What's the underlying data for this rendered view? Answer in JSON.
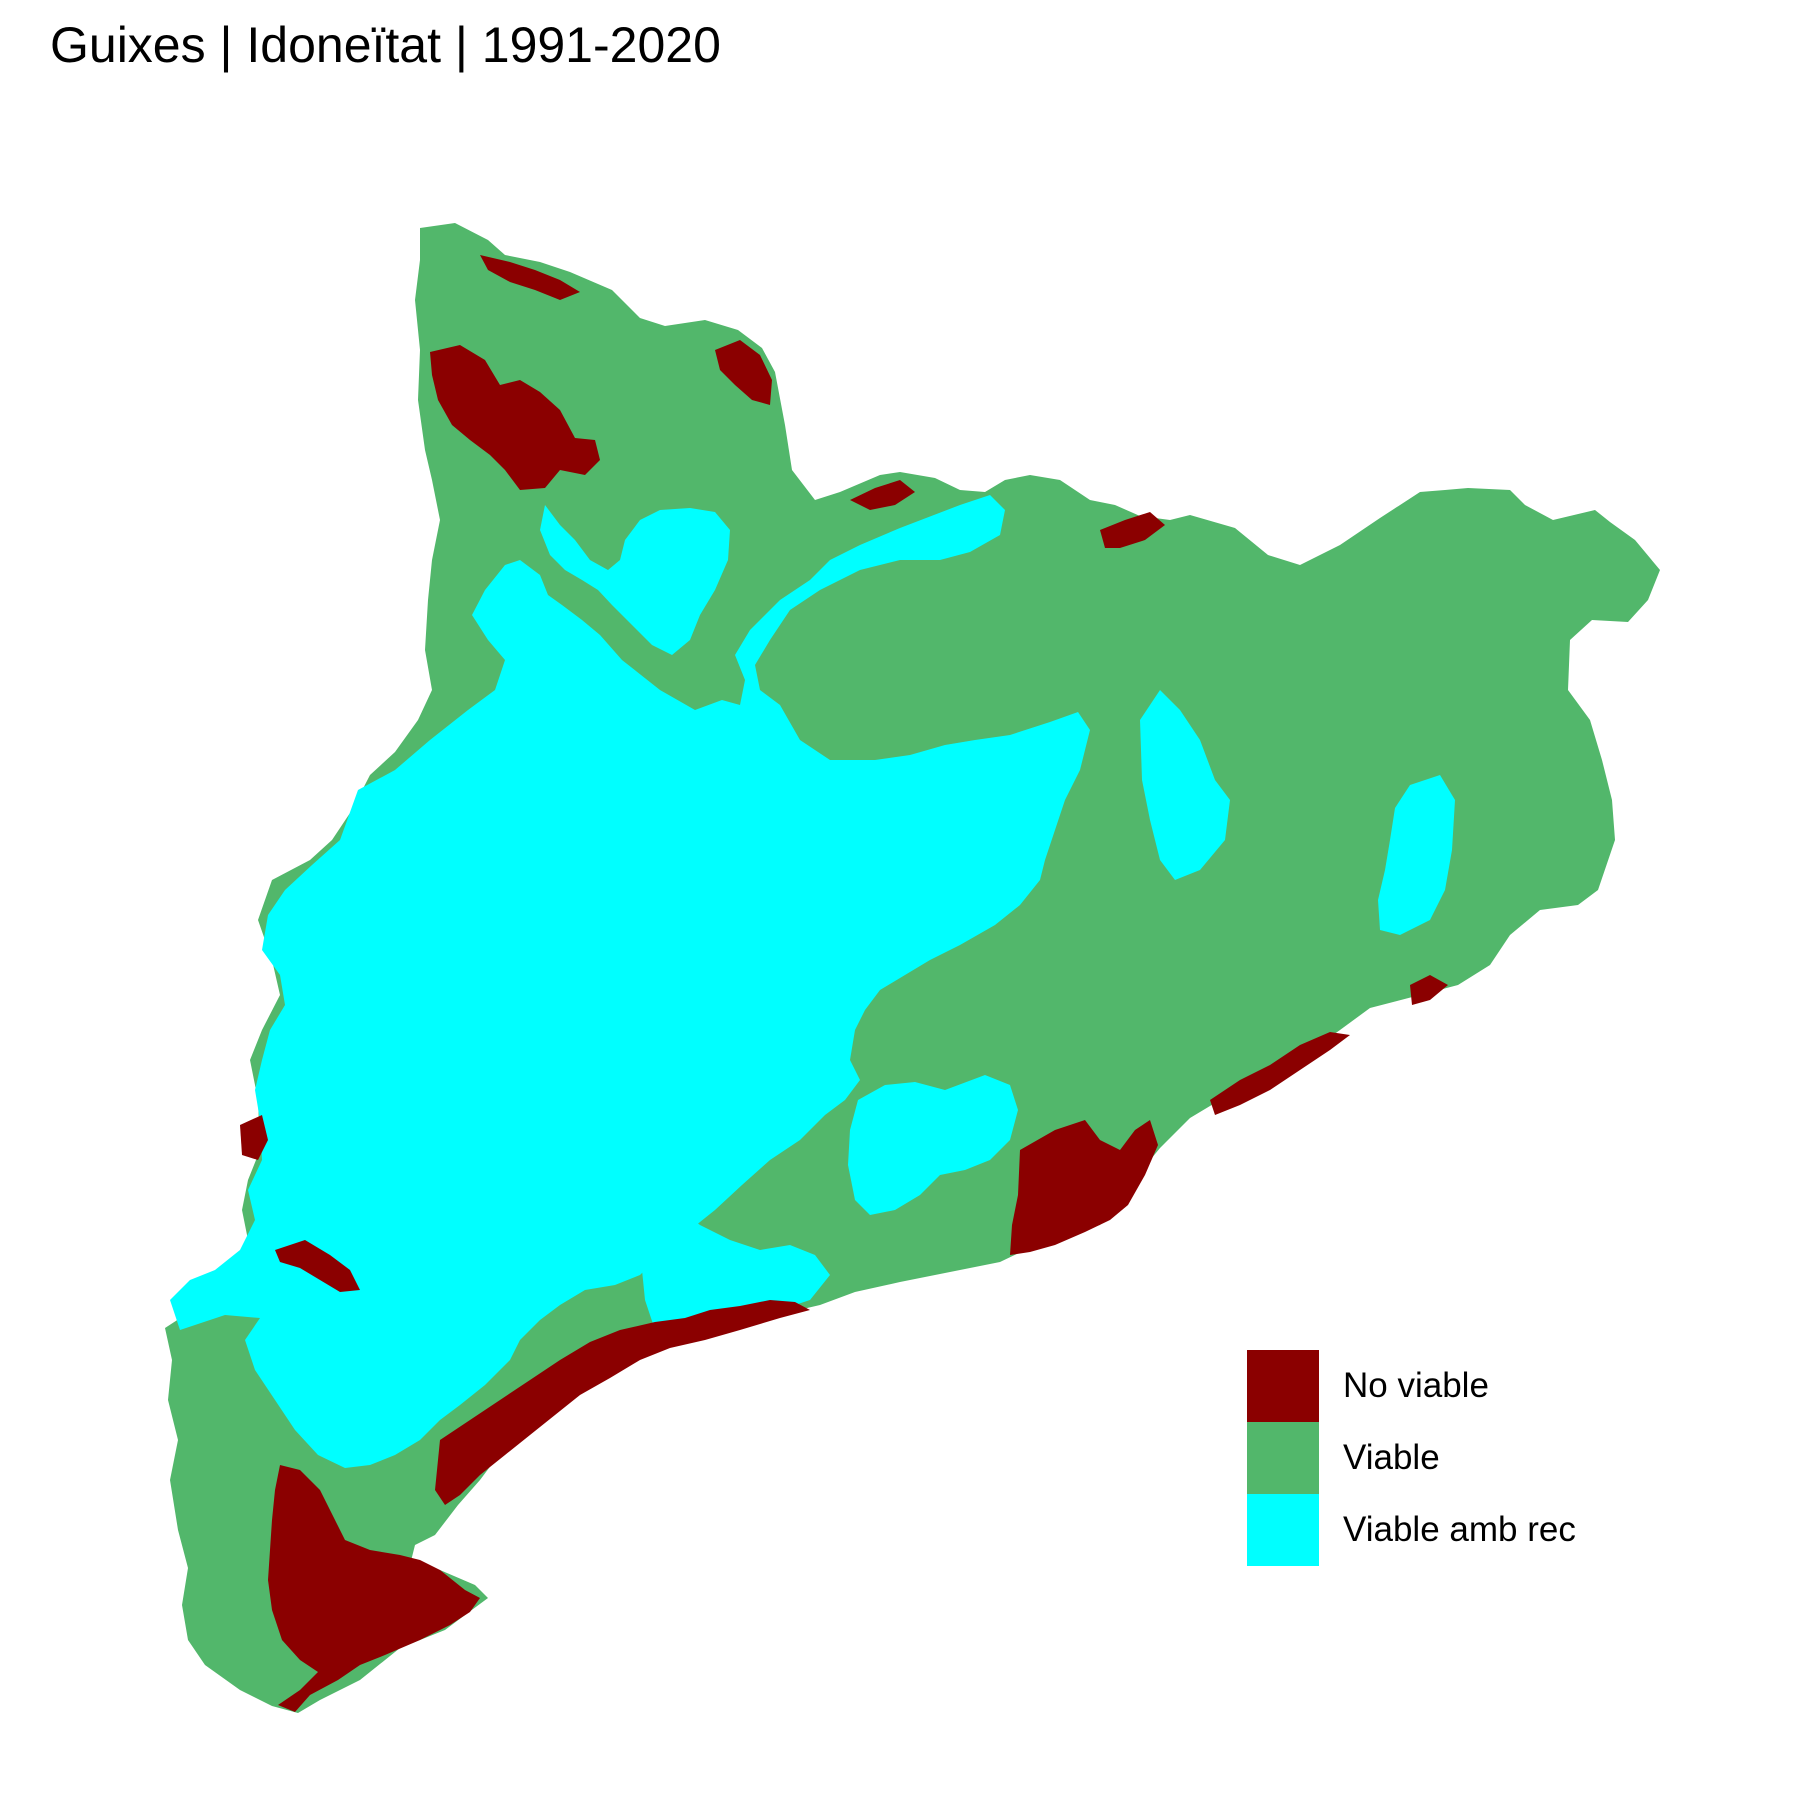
{
  "title": "Guixes | Idoneïtat | 1991-2020",
  "legend": {
    "items": [
      {
        "label": "No viable",
        "color": "#8B0000"
      },
      {
        "label": "Viable",
        "color": "#52B76B"
      },
      {
        "label": "Viable amb rec",
        "color": "#00FFFF"
      }
    ]
  }
}
